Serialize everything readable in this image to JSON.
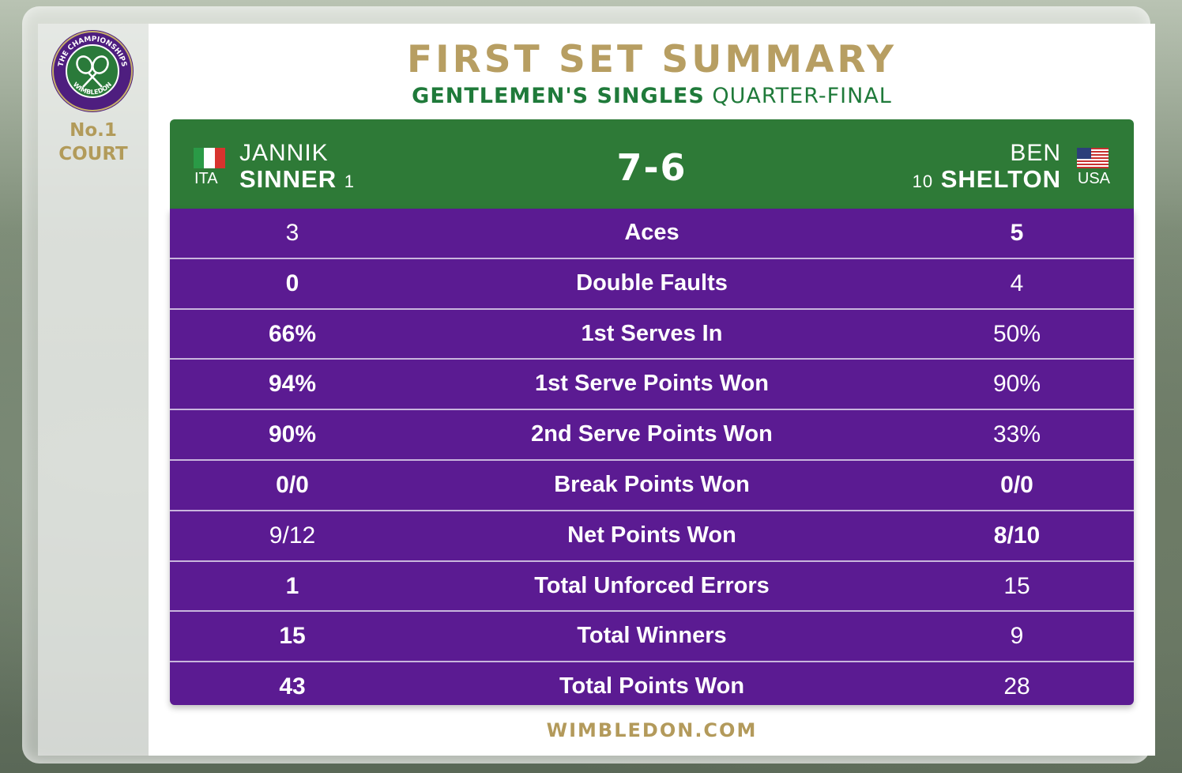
{
  "branding": {
    "logo_text_top": "THE CHAMPIONSHIPS",
    "logo_text_bottom": "WIMBLEDON",
    "court_line1": "No.1",
    "court_line2": "COURT",
    "colors": {
      "gold": "#b79e62",
      "green": "#2e7a37",
      "purple": "#5b1b92"
    }
  },
  "header": {
    "title": "FIRST SET SUMMARY",
    "event": "GENTLEMEN'S SINGLES",
    "round": "QUARTER-FINAL"
  },
  "match": {
    "score": "7-6",
    "player_left": {
      "first": "JANNIK",
      "last": "SINNER",
      "seed": "1",
      "country": "ITA",
      "flag": "italy-flag-icon"
    },
    "player_right": {
      "first": "BEN",
      "last": "SHELTON",
      "seed": "10",
      "country": "USA",
      "flag": "usa-flag-icon"
    }
  },
  "stats": [
    {
      "label": "Aces",
      "left": "3",
      "right": "5",
      "left_bold": false,
      "right_bold": true
    },
    {
      "label": "Double Faults",
      "left": "0",
      "right": "4",
      "left_bold": true,
      "right_bold": false
    },
    {
      "label": "1st Serves In",
      "left": "66%",
      "right": "50%",
      "left_bold": true,
      "right_bold": false
    },
    {
      "label": "1st Serve Points Won",
      "left": "94%",
      "right": "90%",
      "left_bold": true,
      "right_bold": false
    },
    {
      "label": "2nd Serve Points Won",
      "left": "90%",
      "right": "33%",
      "left_bold": true,
      "right_bold": false
    },
    {
      "label": "Break Points Won",
      "left": "0/0",
      "right": "0/0",
      "left_bold": true,
      "right_bold": true
    },
    {
      "label": "Net Points Won",
      "left": "9/12",
      "right": "8/10",
      "left_bold": false,
      "right_bold": true
    },
    {
      "label": "Total Unforced Errors",
      "left": "1",
      "right": "15",
      "left_bold": true,
      "right_bold": false
    },
    {
      "label": "Total Winners",
      "left": "15",
      "right": "9",
      "left_bold": true,
      "right_bold": false
    },
    {
      "label": "Total Points Won",
      "left": "43",
      "right": "28",
      "left_bold": true,
      "right_bold": false
    }
  ],
  "footer": {
    "site": "WIMBLEDON.COM"
  }
}
